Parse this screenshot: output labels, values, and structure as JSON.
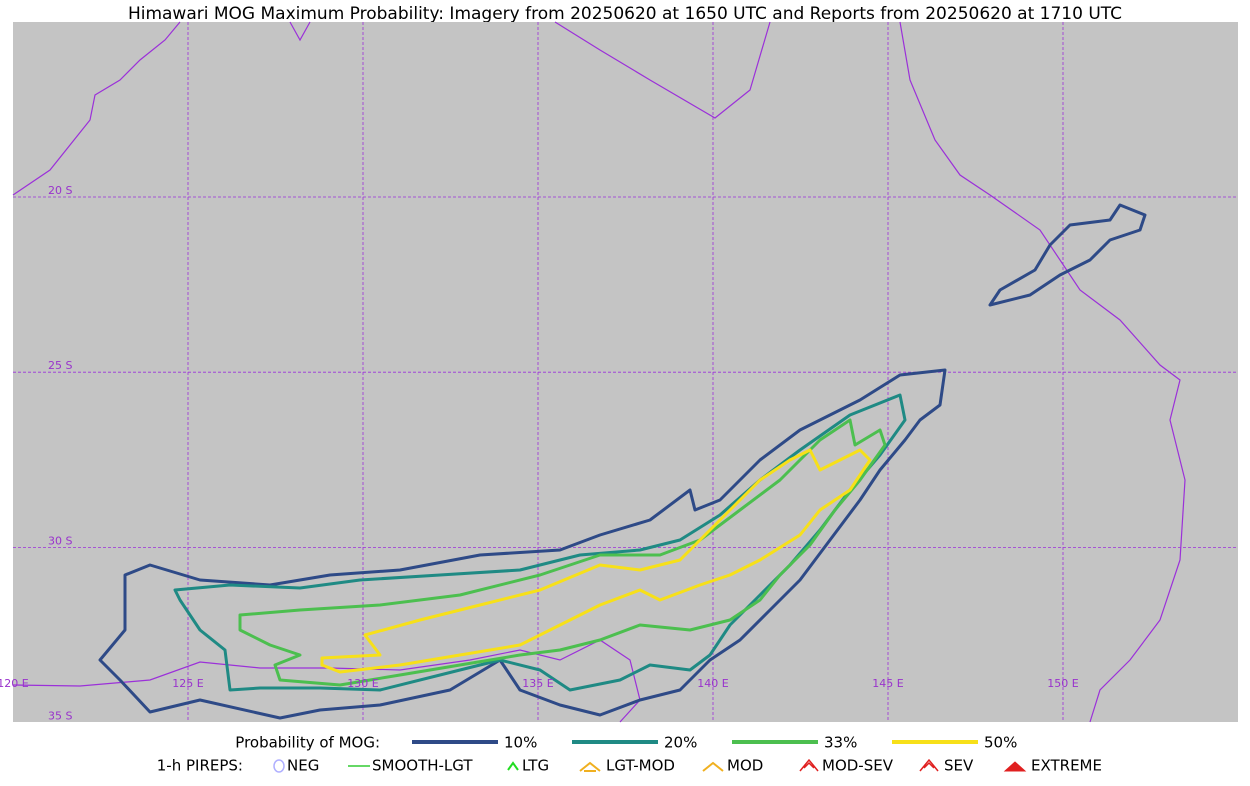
{
  "title": "Himawari MOG Maximum Probability: Imagery from 20250620 at 1650 UTC and Reports from 20250620 at 1710 UTC",
  "grid_labels": {
    "lat": [
      "20 S",
      "25 S",
      "30 S",
      "35 S"
    ],
    "lon": [
      "120 E",
      "125 E",
      "130 E",
      "135 E",
      "140 E",
      "145 E",
      "150 E"
    ]
  },
  "legend": {
    "probability": {
      "label": "Probability of MOG:",
      "items": [
        {
          "label": "10%",
          "color": "#2e4a87"
        },
        {
          "label": "20%",
          "color": "#1f8a84"
        },
        {
          "label": "33%",
          "color": "#4cbf4f"
        },
        {
          "label": "50%",
          "color": "#f7e019"
        }
      ]
    },
    "pireps": {
      "label": "1-h PIREPS:",
      "items": [
        {
          "label": "NEG",
          "color": "#b0b0ff"
        },
        {
          "label": "SMOOTH-LGT",
          "color": "#33cc33"
        },
        {
          "label": "LTG",
          "color": "#22dd22"
        },
        {
          "label": "LGT-MOD",
          "color": "#f0b020"
        },
        {
          "label": "MOD",
          "color": "#f0b020"
        },
        {
          "label": "MOD-SEV",
          "color": "#e02020"
        },
        {
          "label": "SEV",
          "color": "#e02020"
        },
        {
          "label": "EXTREME",
          "color": "#e02020"
        }
      ]
    }
  }
}
